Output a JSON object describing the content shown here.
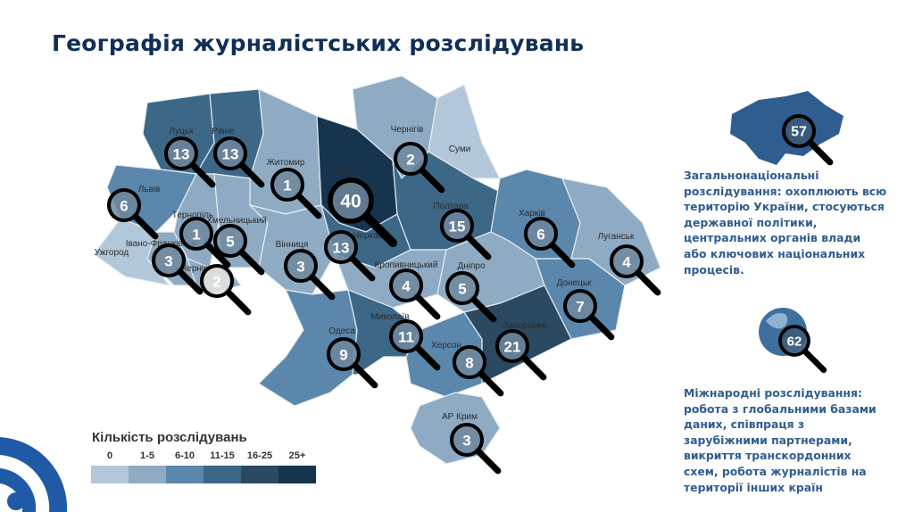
{
  "title": "Географія журналістських розслідувань",
  "legend": {
    "title": "Кількість розслідувань",
    "bins": [
      {
        "label": "0",
        "color": "#b3c7da"
      },
      {
        "label": "1-5",
        "color": "#8eabc3"
      },
      {
        "label": "6-10",
        "color": "#5a87ab"
      },
      {
        "label": "11-15",
        "color": "#3c6786"
      },
      {
        "label": "16-25",
        "color": "#2b4a62"
      },
      {
        "label": "25+",
        "color": "#17344f"
      }
    ]
  },
  "regions": [
    {
      "name": "Луцьк",
      "count": "13",
      "level": 3
    },
    {
      "name": "Рівне",
      "count": "13",
      "level": 3
    },
    {
      "name": "Житомир",
      "count": "1",
      "level": 1
    },
    {
      "name": "Київ",
      "count": "40",
      "level": 5
    },
    {
      "name": "Чернігів",
      "count": "2",
      "level": 1
    },
    {
      "name": "Суми",
      "count": "",
      "level": 0
    },
    {
      "name": "Львів",
      "count": "6",
      "level": 2
    },
    {
      "name": "Тернопіль",
      "count": "1",
      "level": 1
    },
    {
      "name": "Хмельницький",
      "count": "5",
      "level": 1
    },
    {
      "name": "Івано-Франківськ",
      "count": "3",
      "level": 1
    },
    {
      "name": "Ужгород",
      "count": "",
      "level": 0
    },
    {
      "name": "Чернівці",
      "count": "2",
      "level": 1
    },
    {
      "name": "Вінниця",
      "count": "3",
      "level": 1
    },
    {
      "name": "Черкаси",
      "count": "13",
      "level": 3
    },
    {
      "name": "Полтава",
      "count": "15",
      "level": 3
    },
    {
      "name": "Харків",
      "count": "6",
      "level": 2
    },
    {
      "name": "Луганськ",
      "count": "4",
      "level": 1
    },
    {
      "name": "Кропивницький",
      "count": "4",
      "level": 1
    },
    {
      "name": "Дніпро",
      "count": "5",
      "level": 1
    },
    {
      "name": "Донецьк",
      "count": "7",
      "level": 2
    },
    {
      "name": "Одеса",
      "count": "9",
      "level": 2
    },
    {
      "name": "Миколаїв",
      "count": "11",
      "level": 3
    },
    {
      "name": "Херсон",
      "count": "8",
      "level": 2
    },
    {
      "name": "Запоріжжя",
      "count": "21",
      "level": 4
    },
    {
      "name": "АР Крим",
      "count": "3",
      "level": 1
    }
  ],
  "national": {
    "count": "57",
    "text": "Загальнонаціональні\nрозслідування: охоплюють всю\nтериторію України, стосуються\nдержавної політики,\nцентральних органів влади\nабо ключових національних\nпроцесів."
  },
  "international": {
    "count": "62",
    "text": "Міжнародні розслідування:\nробота з глобальними базами\nданих, співпраця з\nзарубіжними партнерами,\nвикриття транскордонних\nсхем,  робота журналістів на\nтериторії інших країн"
  },
  "colors": {
    "title": "#0f2f57",
    "text": "#2f5d8f",
    "marker_stroke": "#000000"
  }
}
